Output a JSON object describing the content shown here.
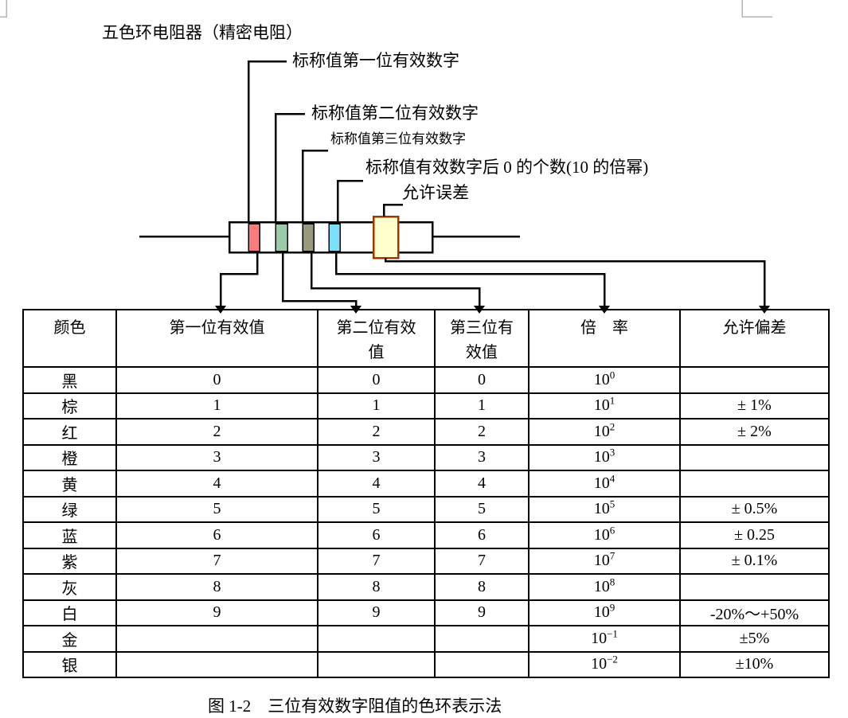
{
  "page": {
    "title": "五色环电阻器（精密电阻）",
    "caption": "图 1-2　三位有效数字阻值的色环表示法"
  },
  "callouts": {
    "band1": "标称值第一位有效数字",
    "band2": "标称值第二位有效数字",
    "band3": "标称值第三位有效数字",
    "band4": "标称值有效数字后 0 的个数(10 的倍幂)",
    "band5": "允许误差"
  },
  "resistor": {
    "band_colors": {
      "band1": "#fa7d7d",
      "band2": "#9bcca9",
      "band3": "#9a997b",
      "band4": "#7edffb",
      "band5_fill": "#ffffcd",
      "band5_border": "#9a3a00"
    },
    "body_fill": "#ffffff",
    "line_color": "#000000",
    "corner_mark_color": "#b3b3b3"
  },
  "table": {
    "headers": [
      "颜色",
      "第一位有效值",
      "第二位有效\n值",
      "第三位有\n效值",
      "倍　率",
      "允许偏差"
    ],
    "rows": [
      {
        "color": "黑",
        "d1": "0",
        "d2": "0",
        "d3": "0",
        "mult_base": "10",
        "mult_exp": "0",
        "tolerance": ""
      },
      {
        "color": "棕",
        "d1": "1",
        "d2": "1",
        "d3": "1",
        "mult_base": "10",
        "mult_exp": "1",
        "tolerance": "± 1%"
      },
      {
        "color": "红",
        "d1": "2",
        "d2": "2",
        "d3": "2",
        "mult_base": "10",
        "mult_exp": "2",
        "tolerance": "± 2%"
      },
      {
        "color": "橙",
        "d1": "3",
        "d2": "3",
        "d3": "3",
        "mult_base": "10",
        "mult_exp": "3",
        "tolerance": ""
      },
      {
        "color": "黄",
        "d1": "4",
        "d2": "4",
        "d3": "4",
        "mult_base": "10",
        "mult_exp": "4",
        "tolerance": ""
      },
      {
        "color": "绿",
        "d1": "5",
        "d2": "5",
        "d3": "5",
        "mult_base": "10",
        "mult_exp": "5",
        "tolerance": "± 0.5%"
      },
      {
        "color": "蓝",
        "d1": "6",
        "d2": "6",
        "d3": "6",
        "mult_base": "10",
        "mult_exp": "6",
        "tolerance": "± 0.25"
      },
      {
        "color": "紫",
        "d1": "7",
        "d2": "7",
        "d3": "7",
        "mult_base": "10",
        "mult_exp": "7",
        "tolerance": "± 0.1%"
      },
      {
        "color": "灰",
        "d1": "8",
        "d2": "8",
        "d3": "8",
        "mult_base": "10",
        "mult_exp": "8",
        "tolerance": ""
      },
      {
        "color": "白",
        "d1": "9",
        "d2": "9",
        "d3": "9",
        "mult_base": "10",
        "mult_exp": "9",
        "tolerance": "-20%～+50%"
      },
      {
        "color": "金",
        "d1": "",
        "d2": "",
        "d3": "",
        "mult_base": "10",
        "mult_exp": "−1",
        "tolerance": "±5%"
      },
      {
        "color": "银",
        "d1": "",
        "d2": "",
        "d3": "",
        "mult_base": "10",
        "mult_exp": "−2",
        "tolerance": "±10%"
      }
    ]
  }
}
